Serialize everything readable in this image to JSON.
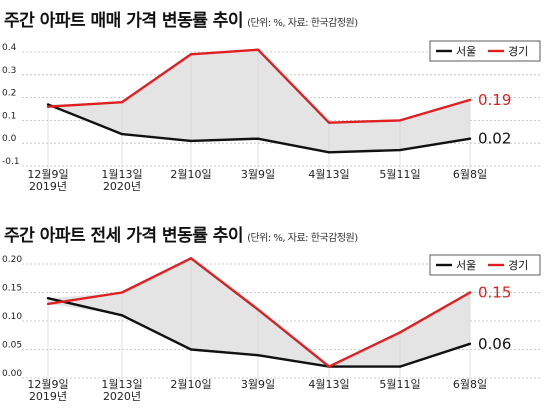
{
  "charts": [
    {
      "title": "주간 아파트 매매 가격 변동률 추이",
      "unit_note": "(단위: %, 자료: 한국감정원)"
    },
    {
      "title": "주간 아파트 전세 가격 변동률 추이",
      "unit_note": "(단위: %, 자료: 한국감정원)"
    }
  ],
  "colors": {
    "seoul": "#111111",
    "gyeonggi": "#e02020",
    "fill": "#e4e4e4"
  },
  "chart_data": [
    {
      "type": "line",
      "title": "주간 아파트 매매 가격 변동률 추이",
      "unit_note": "(단위: %, 자료: 한국감정원)",
      "categories": [
        "12월9일\n2019년",
        "1월13일\n2020년",
        "2월10일",
        "3월9일",
        "4월13일",
        "5월11일",
        "6월8일"
      ],
      "series": [
        {
          "name": "서울",
          "values": [
            0.17,
            0.04,
            0.01,
            0.02,
            -0.04,
            -0.03,
            0.02
          ],
          "end_label": "0.02"
        },
        {
          "name": "경기",
          "values": [
            0.16,
            0.18,
            0.39,
            0.41,
            0.09,
            0.1,
            0.19
          ],
          "end_label": "0.19"
        }
      ],
      "yticks": [
        "0.4",
        "0.3",
        "0.2",
        "0.1",
        "0.0",
        "-0.1"
      ],
      "ylim": [
        -0.1,
        0.45
      ],
      "legend": "top-right"
    },
    {
      "type": "line",
      "title": "주간 아파트 전세 가격 변동률 추이",
      "unit_note": "(단위: %, 자료: 한국감정원)",
      "categories": [
        "12월9일\n2019년",
        "1월13일\n2020년",
        "2월10일",
        "3월9일",
        "4월13일",
        "5월11일",
        "6월8일"
      ],
      "series": [
        {
          "name": "서울",
          "values": [
            0.14,
            0.11,
            0.05,
            0.04,
            0.02,
            0.02,
            0.06
          ],
          "end_label": "0.06"
        },
        {
          "name": "경기",
          "values": [
            0.13,
            0.15,
            0.21,
            0.12,
            0.02,
            0.08,
            0.15
          ],
          "end_label": "0.15"
        }
      ],
      "yticks": [
        "0.20",
        "0.15",
        "0.10",
        "0.05",
        "0.00"
      ],
      "ylim": [
        0.0,
        0.22
      ],
      "legend": "top-right"
    }
  ]
}
